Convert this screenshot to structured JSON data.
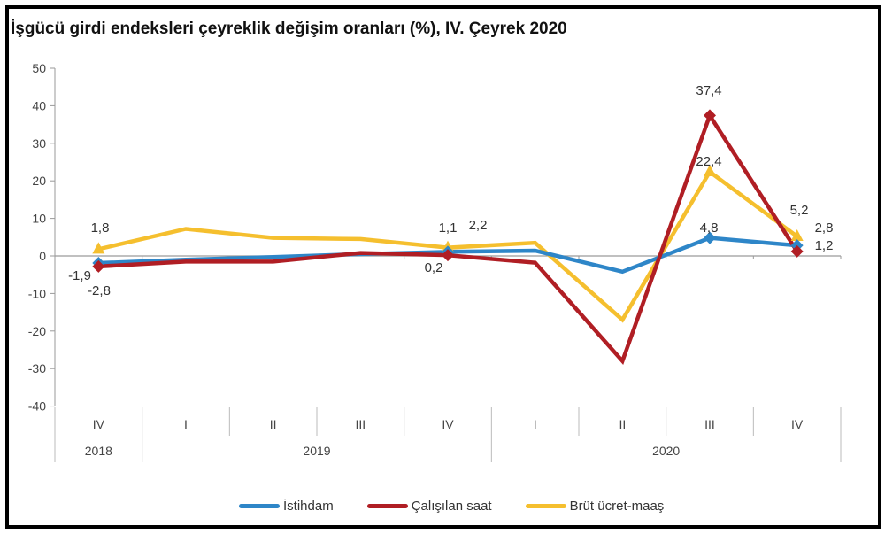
{
  "title": "İşgücü girdi endeksleri çeyreklik değişim oranları (%), IV. Çeyrek 2020",
  "legend": [
    {
      "label": "İstihdam",
      "color": "#2E86C8"
    },
    {
      "label": "Çalışılan saat",
      "color": "#B01E24"
    },
    {
      "label": "Brüt ücret-maaş",
      "color": "#F5BF2E"
    }
  ],
  "chart_data": {
    "type": "line",
    "title": "İşgücü girdi endeksleri çeyreklik değişim oranları (%), IV. Çeyrek 2020",
    "xlabel": "",
    "ylabel": "",
    "ylim": [
      -40,
      50
    ],
    "yticks": [
      50,
      40,
      30,
      20,
      10,
      0,
      -10,
      -20,
      -30,
      -40
    ],
    "categories": [
      "IV",
      "I",
      "II",
      "III",
      "IV",
      "I",
      "II",
      "III",
      "IV"
    ],
    "year_groups": [
      {
        "label": "2018",
        "span": 1
      },
      {
        "label": "2019",
        "span": 4
      },
      {
        "label": "2020",
        "span": 4
      }
    ],
    "series": [
      {
        "name": "İstihdam",
        "color": "#2E86C8",
        "values": [
          -1.9,
          -1.0,
          -0.3,
          0.5,
          1.1,
          1.4,
          -4.2,
          4.8,
          2.8
        ]
      },
      {
        "name": "Çalışılan saat",
        "color": "#B01E24",
        "values": [
          -2.8,
          -1.5,
          -1.5,
          0.8,
          0.2,
          -1.8,
          -28.0,
          37.4,
          1.2
        ]
      },
      {
        "name": "Brüt ücret-maaş",
        "color": "#F5BF2E",
        "values": [
          1.8,
          7.2,
          4.8,
          4.5,
          2.2,
          3.5,
          -17.0,
          22.4,
          5.2
        ]
      }
    ],
    "annotations": [
      {
        "text": "1,8",
        "series": "Brüt ücret-maaş",
        "index": 0
      },
      {
        "text": "-1,9",
        "series": "İstihdam",
        "index": 0
      },
      {
        "text": "-2,8",
        "series": "Çalışılan saat",
        "index": 0
      },
      {
        "text": "1,1",
        "series": "İstihdam",
        "index": 4
      },
      {
        "text": "2,2",
        "series": "Brüt ücret-maaş",
        "index": 4
      },
      {
        "text": "0,2",
        "series": "Çalışılan saat",
        "index": 4
      },
      {
        "text": "37,4",
        "series": "Çalışılan saat",
        "index": 7
      },
      {
        "text": "22,4",
        "series": "Brüt ücret-maaş",
        "index": 7
      },
      {
        "text": "4,8",
        "series": "İstihdam",
        "index": 7
      },
      {
        "text": "5,2",
        "series": "Brüt ücret-maaş",
        "index": 8
      },
      {
        "text": "2,8",
        "series": "İstihdam",
        "index": 8
      },
      {
        "text": "1,2",
        "series": "Çalışılan saat",
        "index": 8
      }
    ],
    "grid": false,
    "legend_position": "bottom"
  }
}
